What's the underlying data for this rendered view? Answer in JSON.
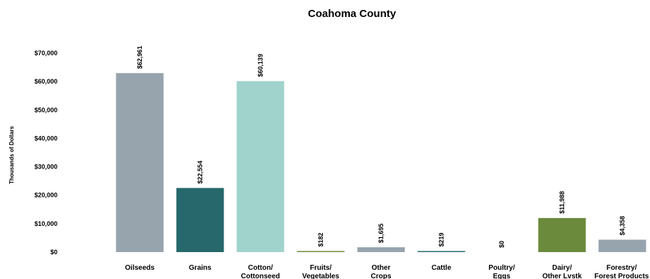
{
  "chart_data": {
    "type": "bar",
    "title": "Coahoma County",
    "xlabel": "",
    "ylabel": "Thousands of Dollars",
    "ylim": [
      0,
      70000
    ],
    "yticks": [
      0,
      10000,
      20000,
      30000,
      40000,
      50000,
      60000,
      70000
    ],
    "ytick_labels": [
      "$0",
      "$10,000",
      "$20,000",
      "$30,000",
      "$40,000",
      "$50,000",
      "$60,000",
      "$70,000"
    ],
    "grid": false,
    "categories": [
      [
        "Oilseeds"
      ],
      [
        "Grains"
      ],
      [
        "Cotton/",
        "Cottonseed"
      ],
      [
        "Fruits/",
        "Vegetables"
      ],
      [
        "Other",
        "Crops"
      ],
      [
        "Cattle"
      ],
      [
        "Poultry/",
        "Eggs"
      ],
      [
        "Dairy/",
        "Other Lvstk"
      ],
      [
        "Forestry/",
        "Forest Products"
      ]
    ],
    "values": [
      62961,
      22554,
      60139,
      182,
      1695,
      219,
      0,
      11988,
      4358
    ],
    "data_labels": [
      "$62,961",
      "$22,554",
      "$60,139",
      "$182",
      "$1,695",
      "$219",
      "$0",
      "$11,988",
      "$4,358"
    ],
    "colors": [
      "#97a3ad",
      "#26686c",
      "#a0d3cc",
      "#6b8a3c",
      "#97a3ad",
      "#26686c",
      "#a0d3cc",
      "#6b8a3c",
      "#97a3ad"
    ]
  }
}
